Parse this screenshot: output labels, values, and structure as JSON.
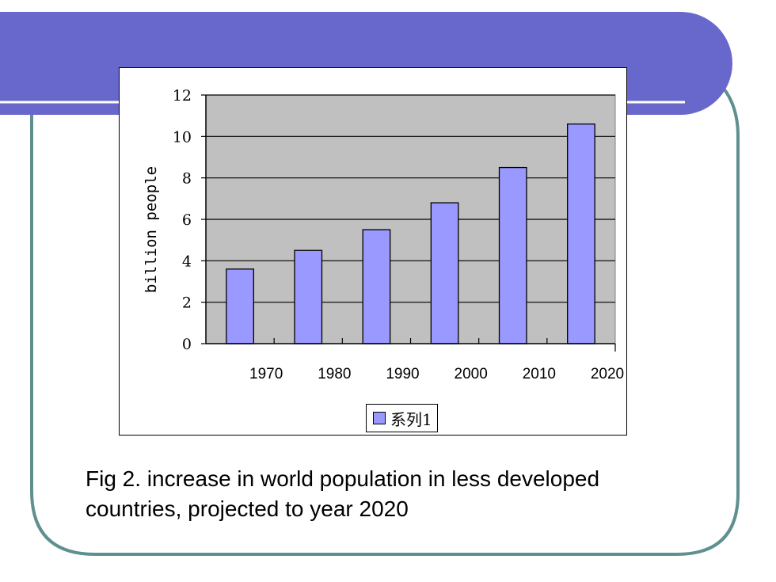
{
  "colors": {
    "banner": "#6868cc",
    "frame": "#5f9090",
    "plot_bg": "#c0c0c0",
    "bar_fill": "#9999ff",
    "bar_stroke": "#000000"
  },
  "caption": {
    "line1": "Fig 2. increase in world population in less developed",
    "line2": "countries, projected to year 2020"
  },
  "chart_data": {
    "type": "bar",
    "title": "",
    "xlabel": "",
    "ylabel": "billion people",
    "categories": [
      "1970",
      "1980",
      "1990",
      "2000",
      "2010",
      "2020"
    ],
    "yticks": [
      "0",
      "2",
      "4",
      "6",
      "8",
      "10",
      "12"
    ],
    "ylim": [
      0,
      12
    ],
    "grid": true,
    "legend": "bottom-center",
    "series": [
      {
        "name": "系列1",
        "values": [
          3.6,
          4.5,
          5.5,
          6.8,
          8.5,
          10.6
        ]
      }
    ]
  }
}
